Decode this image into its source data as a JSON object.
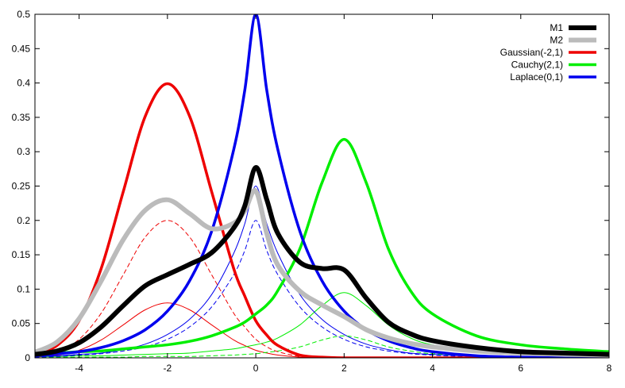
{
  "chart_data": {
    "type": "line",
    "title": "",
    "xlabel": "",
    "ylabel": "",
    "xlim": [
      -5,
      8
    ],
    "ylim": [
      0,
      0.5
    ],
    "x_ticks": [
      -4,
      -2,
      0,
      2,
      4,
      6,
      8
    ],
    "y_ticks": [
      0,
      0.05,
      0.1,
      0.15,
      0.2,
      0.25,
      0.3,
      0.35,
      0.4,
      0.45,
      0.5
    ],
    "x_tick_labels": [
      "-4",
      "-2",
      "0",
      "2",
      "4",
      "6",
      "8"
    ],
    "y_tick_labels": [
      "0",
      "0.05",
      "0.1",
      "0.15",
      "0.2",
      "0.25",
      "0.3",
      "0.35",
      "0.4",
      "0.45",
      "0.5"
    ],
    "grid": false,
    "legend_position": "top-right",
    "sample_x": [
      -5,
      -4.5,
      -4,
      -3.5,
      -3,
      -2.5,
      -2,
      -1.5,
      -1,
      -0.5,
      -0.25,
      0,
      0.25,
      0.5,
      1,
      1.5,
      2,
      2.5,
      3,
      3.5,
      4,
      5,
      6,
      7,
      8
    ],
    "series": [
      {
        "name": "M1",
        "role": "mixture",
        "color": "#000000",
        "style": "solid",
        "width": 6,
        "values": [
          0.005,
          0.01,
          0.022,
          0.045,
          0.076,
          0.105,
          0.121,
          0.136,
          0.153,
          0.189,
          0.221,
          0.277,
          0.23,
          0.181,
          0.139,
          0.13,
          0.128,
          0.087,
          0.052,
          0.035,
          0.025,
          0.015,
          0.009,
          0.007,
          0.005
        ]
      },
      {
        "name": "M2",
        "role": "mixture",
        "color": "#bbbbbb",
        "style": "solid",
        "width": 6,
        "values": [
          0.008,
          0.023,
          0.057,
          0.112,
          0.172,
          0.215,
          0.23,
          0.21,
          0.188,
          0.196,
          0.214,
          0.243,
          0.181,
          0.135,
          0.097,
          0.077,
          0.06,
          0.041,
          0.029,
          0.021,
          0.016,
          0.01,
          0.007,
          0.005,
          0.004
        ]
      },
      {
        "name": "Gaussian(-2,1)",
        "role": "component",
        "color": "#ee0000",
        "style": "solid",
        "width": 3.5,
        "values": [
          0.004,
          0.018,
          0.054,
          0.13,
          0.242,
          0.352,
          0.399,
          0.352,
          0.242,
          0.13,
          0.09,
          0.054,
          0.033,
          0.018,
          0.004,
          0.001,
          0.0,
          0.0,
          0.0,
          0.0,
          0.0,
          0.0,
          0.0,
          0.0,
          0.0
        ]
      },
      {
        "name": "Cauchy(2,1)",
        "role": "component",
        "color": "#00ee00",
        "style": "solid",
        "width": 3.5,
        "values": [
          0.006,
          0.007,
          0.009,
          0.01,
          0.013,
          0.016,
          0.019,
          0.024,
          0.032,
          0.044,
          0.052,
          0.064,
          0.077,
          0.098,
          0.159,
          0.255,
          0.318,
          0.255,
          0.159,
          0.098,
          0.064,
          0.032,
          0.019,
          0.013,
          0.009
        ]
      },
      {
        "name": "Laplace(0,1)",
        "role": "component",
        "color": "#0000ee",
        "style": "solid",
        "width": 3.5,
        "values": [
          0.003,
          0.006,
          0.009,
          0.015,
          0.025,
          0.041,
          0.068,
          0.112,
          0.184,
          0.303,
          0.389,
          0.5,
          0.389,
          0.303,
          0.184,
          0.112,
          0.068,
          0.041,
          0.025,
          0.015,
          0.009,
          0.003,
          0.001,
          0.0,
          0.0
        ]
      },
      {
        "name": "",
        "role": "M1 weighted Gaussian",
        "color": "#ee0000",
        "style": "solid",
        "width": 1,
        "values": [
          0.001,
          0.004,
          0.011,
          0.026,
          0.048,
          0.07,
          0.08,
          0.07,
          0.048,
          0.026,
          0.018,
          0.011,
          0.007,
          0.004,
          0.001,
          0.0,
          0.0,
          0.0,
          0.0,
          0.0,
          0.0,
          0.0,
          0.0,
          0.0,
          0.0
        ]
      },
      {
        "name": "",
        "role": "M1 weighted Cauchy",
        "color": "#00ee00",
        "style": "solid",
        "width": 1,
        "values": [
          0.002,
          0.002,
          0.003,
          0.003,
          0.004,
          0.005,
          0.006,
          0.007,
          0.01,
          0.013,
          0.016,
          0.019,
          0.023,
          0.029,
          0.048,
          0.076,
          0.095,
          0.076,
          0.048,
          0.029,
          0.019,
          0.01,
          0.006,
          0.004,
          0.003
        ]
      },
      {
        "name": "",
        "role": "M1 weighted Laplace",
        "color": "#0000ee",
        "style": "solid",
        "width": 1,
        "values": [
          0.002,
          0.003,
          0.005,
          0.007,
          0.012,
          0.02,
          0.034,
          0.056,
          0.092,
          0.152,
          0.195,
          0.25,
          0.195,
          0.152,
          0.092,
          0.056,
          0.034,
          0.02,
          0.012,
          0.007,
          0.005,
          0.002,
          0.001,
          0.0,
          0.0
        ]
      },
      {
        "name": "",
        "role": "M2 weighted Gaussian",
        "color": "#ee0000",
        "style": "dashed",
        "width": 1,
        "values": [
          0.002,
          0.009,
          0.027,
          0.065,
          0.121,
          0.176,
          0.2,
          0.176,
          0.121,
          0.065,
          0.045,
          0.027,
          0.016,
          0.009,
          0.002,
          0.0,
          0.0,
          0.0,
          0.0,
          0.0,
          0.0,
          0.0,
          0.0,
          0.0,
          0.0
        ]
      },
      {
        "name": "",
        "role": "M2 weighted Cauchy",
        "color": "#00ee00",
        "style": "dashed",
        "width": 1,
        "values": [
          0.001,
          0.001,
          0.001,
          0.001,
          0.001,
          0.002,
          0.002,
          0.002,
          0.003,
          0.004,
          0.005,
          0.006,
          0.008,
          0.01,
          0.016,
          0.026,
          0.032,
          0.026,
          0.016,
          0.01,
          0.006,
          0.003,
          0.002,
          0.001,
          0.001
        ]
      },
      {
        "name": "",
        "role": "M2 weighted Laplace",
        "color": "#0000ee",
        "style": "dashed",
        "width": 1,
        "values": [
          0.001,
          0.002,
          0.004,
          0.006,
          0.01,
          0.016,
          0.027,
          0.045,
          0.074,
          0.121,
          0.156,
          0.2,
          0.156,
          0.121,
          0.074,
          0.045,
          0.027,
          0.016,
          0.01,
          0.006,
          0.004,
          0.001,
          0.0,
          0.0,
          0.0
        ]
      }
    ]
  }
}
